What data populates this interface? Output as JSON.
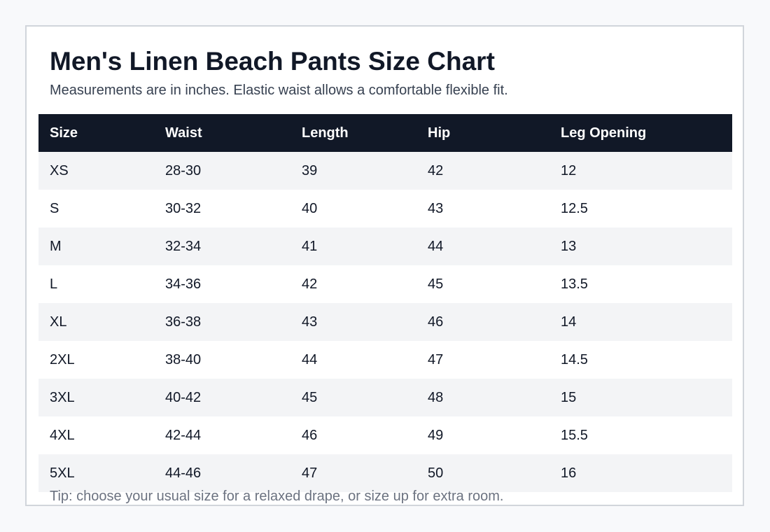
{
  "page": {
    "title": "Men's Linen Beach Pants Size Chart",
    "subtitle": "Measurements are in inches. Elastic waist allows a comfortable flexible fit.",
    "tip": "Tip: choose your usual size for a relaxed drape, or size up for extra room."
  },
  "table": {
    "headers": [
      "Size",
      "Waist",
      "Length",
      "Hip",
      "Leg Opening"
    ],
    "rows": [
      [
        "XS",
        "28-30",
        "39",
        "42",
        "12"
      ],
      [
        "S",
        "30-32",
        "40",
        "43",
        "12.5"
      ],
      [
        "M",
        "32-34",
        "41",
        "44",
        "13"
      ],
      [
        "L",
        "34-36",
        "42",
        "45",
        "13.5"
      ],
      [
        "XL",
        "36-38",
        "43",
        "46",
        "14"
      ],
      [
        "2XL",
        "38-40",
        "44",
        "47",
        "14.5"
      ],
      [
        "3XL",
        "40-42",
        "45",
        "48",
        "15"
      ],
      [
        "4XL",
        "42-44",
        "46",
        "49",
        "15.5"
      ],
      [
        "5XL",
        "44-46",
        "47",
        "50",
        "16"
      ]
    ]
  },
  "colors": {
    "header_bg": "#111827",
    "header_text": "#ffffff",
    "row_alt_bg": "#f3f4f6",
    "row_bg": "#ffffff",
    "tip_text": "#6b7280"
  }
}
